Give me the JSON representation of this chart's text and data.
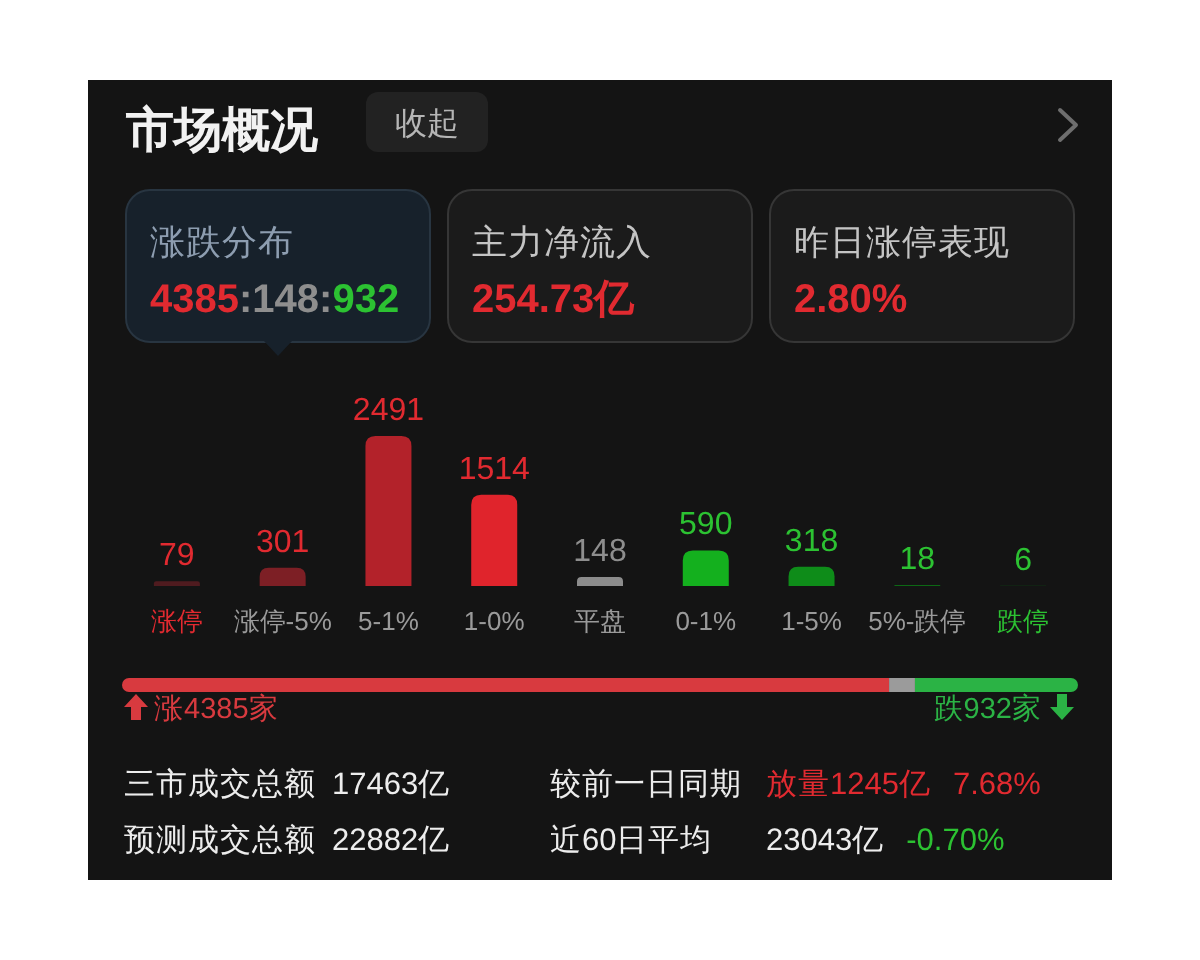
{
  "chart_data": [
    {
      "type": "other",
      "title": "市场概况",
      "annotations": [
        "收起",
        "涨跌分布",
        "4385:148:932",
        "主力净流入",
        "254.73亿",
        "昨日涨停表现",
        "2.80%"
      ]
    },
    {
      "type": "bar",
      "categories": [
        "涨停",
        "涨停-5%",
        "5-1%",
        "1-0%",
        "平盘",
        "0-1%",
        "1-5%",
        "5%-跌停",
        "跌停"
      ],
      "values": [
        79,
        301,
        2491,
        1514,
        148,
        590,
        318,
        18,
        6
      ],
      "colors": [
        "#4f1b1f",
        "#7d1f25",
        "#b3222a",
        "#e0242c",
        "#8c8c8c",
        "#14b01e",
        "#0e8c19",
        "#0c6814",
        "#0a4c11"
      ],
      "data_labels": true
    },
    {
      "type": "bar",
      "orientation": "horizontal",
      "stacked": true,
      "categories": [
        null
      ],
      "series": [
        {
          "color": "#d83a3f",
          "values": [
            4385
          ],
          "value_labels": [
            "涨4385家"
          ]
        },
        {
          "color": "#9b9b9b",
          "values": [
            148
          ]
        },
        {
          "color": "#2bb345",
          "values": [
            932
          ],
          "value_labels": [
            "跌932家"
          ]
        }
      ]
    },
    {
      "type": "other",
      "annotations": [
        "三市成交总额",
        "17463亿",
        "较前一日同期",
        "放量1245亿",
        "7.68%",
        "预测成交总额",
        "22882亿",
        "近60日平均",
        "23043亿",
        "-0.70%"
      ]
    }
  ]
}
